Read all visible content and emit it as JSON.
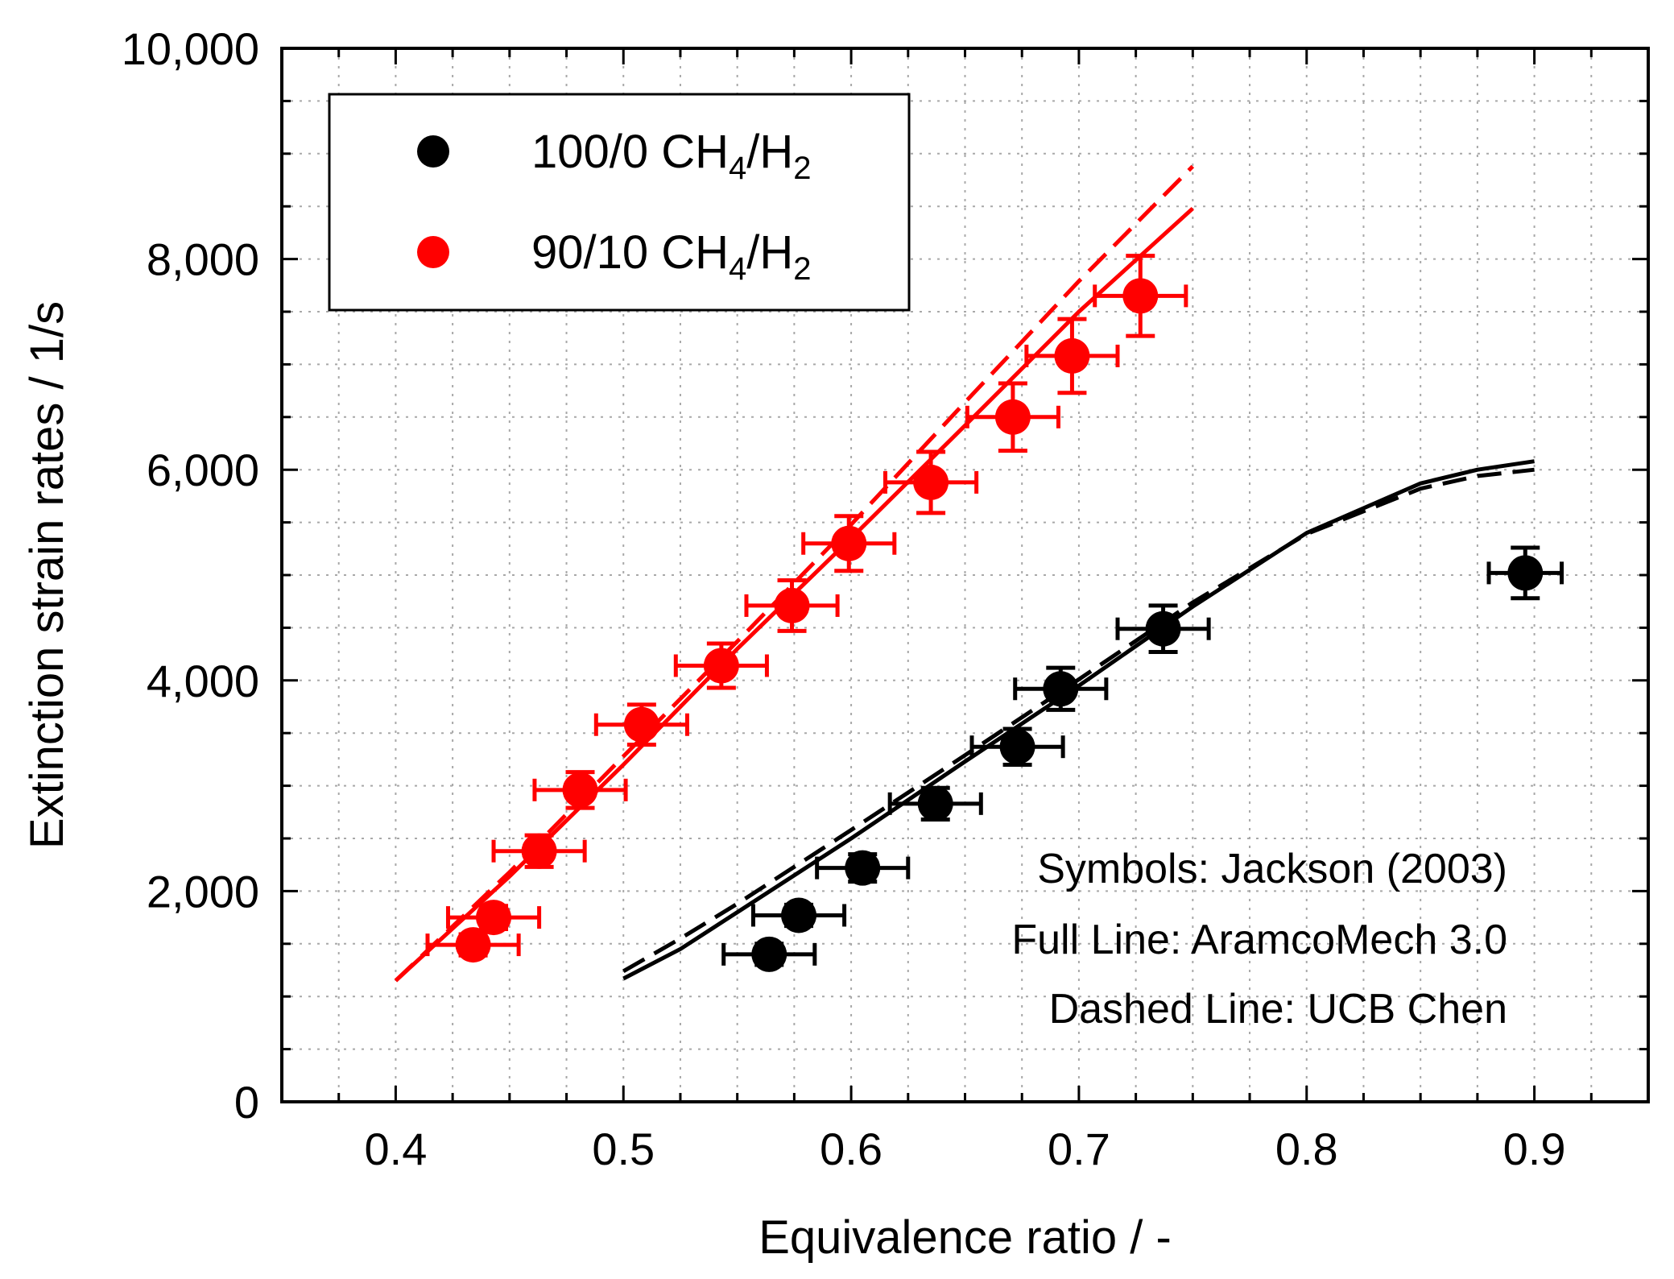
{
  "chart_data": {
    "type": "scatter",
    "title": "",
    "xlabel": "Equivalence ratio / -",
    "ylabel": "Extinction strain rates / 1/s",
    "xlim": [
      0.35,
      0.95
    ],
    "ylim": [
      0,
      10000
    ],
    "x_ticks": [
      0.4,
      0.5,
      0.6,
      0.7,
      0.8,
      0.9
    ],
    "x_tick_labels": [
      "0.4",
      "0.5",
      "0.6",
      "0.7",
      "0.8",
      "0.9"
    ],
    "y_ticks": [
      0,
      2000,
      4000,
      6000,
      8000,
      10000
    ],
    "y_tick_labels": [
      "0",
      "2,000",
      "4,000",
      "6,000",
      "8,000",
      "10,000"
    ],
    "grid": true,
    "legend": {
      "position": "top-left",
      "entries": [
        {
          "label": "100/0 CH",
          "sub1": "4",
          "mid": "/H",
          "sub2": "2",
          "color": "#000000"
        },
        {
          "label": "90/10 CH",
          "sub1": "4",
          "mid": "/H",
          "sub2": "2",
          "color": "#ff0000"
        }
      ]
    },
    "annotations": [
      "Symbols: Jackson (2003)",
      "Full Line: AramcoMech 3.0",
      "Dashed Line: UCB Chen"
    ],
    "series": [
      {
        "name": "100/0 CH4/H2 Jackson (2003)",
        "kind": "points",
        "color": "#000000",
        "points": [
          {
            "x": 0.564,
            "y": 1400,
            "xerr": 0.02,
            "yerr": 100
          },
          {
            "x": 0.577,
            "y": 1770,
            "xerr": 0.02,
            "yerr": 100
          },
          {
            "x": 0.605,
            "y": 2220,
            "xerr": 0.02,
            "yerr": 130
          },
          {
            "x": 0.637,
            "y": 2830,
            "xerr": 0.02,
            "yerr": 150
          },
          {
            "x": 0.673,
            "y": 3370,
            "xerr": 0.02,
            "yerr": 170
          },
          {
            "x": 0.692,
            "y": 3920,
            "xerr": 0.02,
            "yerr": 200
          },
          {
            "x": 0.737,
            "y": 4490,
            "xerr": 0.02,
            "yerr": 220
          },
          {
            "x": 0.896,
            "y": 5020,
            "xerr": 0.016,
            "yerr": 240
          }
        ]
      },
      {
        "name": "90/10 CH4/H2 Jackson (2003)",
        "kind": "points",
        "color": "#ff0000",
        "points": [
          {
            "x": 0.434,
            "y": 1490,
            "xerr": 0.02,
            "yerr": 100
          },
          {
            "x": 0.443,
            "y": 1750,
            "xerr": 0.02,
            "yerr": 110
          },
          {
            "x": 0.463,
            "y": 2380,
            "xerr": 0.02,
            "yerr": 150
          },
          {
            "x": 0.481,
            "y": 2960,
            "xerr": 0.02,
            "yerr": 170
          },
          {
            "x": 0.508,
            "y": 3580,
            "xerr": 0.02,
            "yerr": 190
          },
          {
            "x": 0.543,
            "y": 4140,
            "xerr": 0.02,
            "yerr": 210
          },
          {
            "x": 0.574,
            "y": 4710,
            "xerr": 0.02,
            "yerr": 240
          },
          {
            "x": 0.599,
            "y": 5300,
            "xerr": 0.02,
            "yerr": 260
          },
          {
            "x": 0.635,
            "y": 5880,
            "xerr": 0.02,
            "yerr": 290
          },
          {
            "x": 0.671,
            "y": 6500,
            "xerr": 0.02,
            "yerr": 320
          },
          {
            "x": 0.697,
            "y": 7080,
            "xerr": 0.02,
            "yerr": 350
          },
          {
            "x": 0.727,
            "y": 7650,
            "xerr": 0.02,
            "yerr": 380
          }
        ]
      },
      {
        "name": "100/0 AramcoMech 3.0",
        "kind": "line",
        "dash": false,
        "color": "#000000",
        "x": [
          0.5,
          0.525,
          0.55,
          0.6,
          0.65,
          0.7,
          0.75,
          0.8,
          0.85,
          0.875,
          0.9
        ],
        "y": [
          1170,
          1450,
          1800,
          2500,
          3230,
          3950,
          4700,
          5400,
          5870,
          6000,
          6080
        ]
      },
      {
        "name": "100/0 UCB Chen",
        "kind": "line",
        "dash": true,
        "color": "#000000",
        "x": [
          0.5,
          0.525,
          0.55,
          0.6,
          0.65,
          0.7,
          0.75,
          0.8,
          0.85,
          0.875,
          0.9
        ],
        "y": [
          1240,
          1550,
          1880,
          2580,
          3290,
          4010,
          4740,
          5390,
          5820,
          5940,
          6000
        ]
      },
      {
        "name": "90/10 AramcoMech 3.0",
        "kind": "line",
        "dash": false,
        "color": "#ff0000",
        "x": [
          0.4,
          0.45,
          0.5,
          0.55,
          0.6,
          0.65,
          0.7,
          0.75
        ],
        "y": [
          1150,
          2140,
          3200,
          4300,
          5350,
          6420,
          7500,
          8480
        ]
      },
      {
        "name": "90/10 UCB Chen",
        "kind": "line",
        "dash": true,
        "color": "#ff0000",
        "x": [
          0.4,
          0.45,
          0.5,
          0.55,
          0.6,
          0.65,
          0.7,
          0.75
        ],
        "y": [
          1150,
          2180,
          3280,
          4370,
          5480,
          6640,
          7790,
          8880
        ]
      }
    ]
  }
}
